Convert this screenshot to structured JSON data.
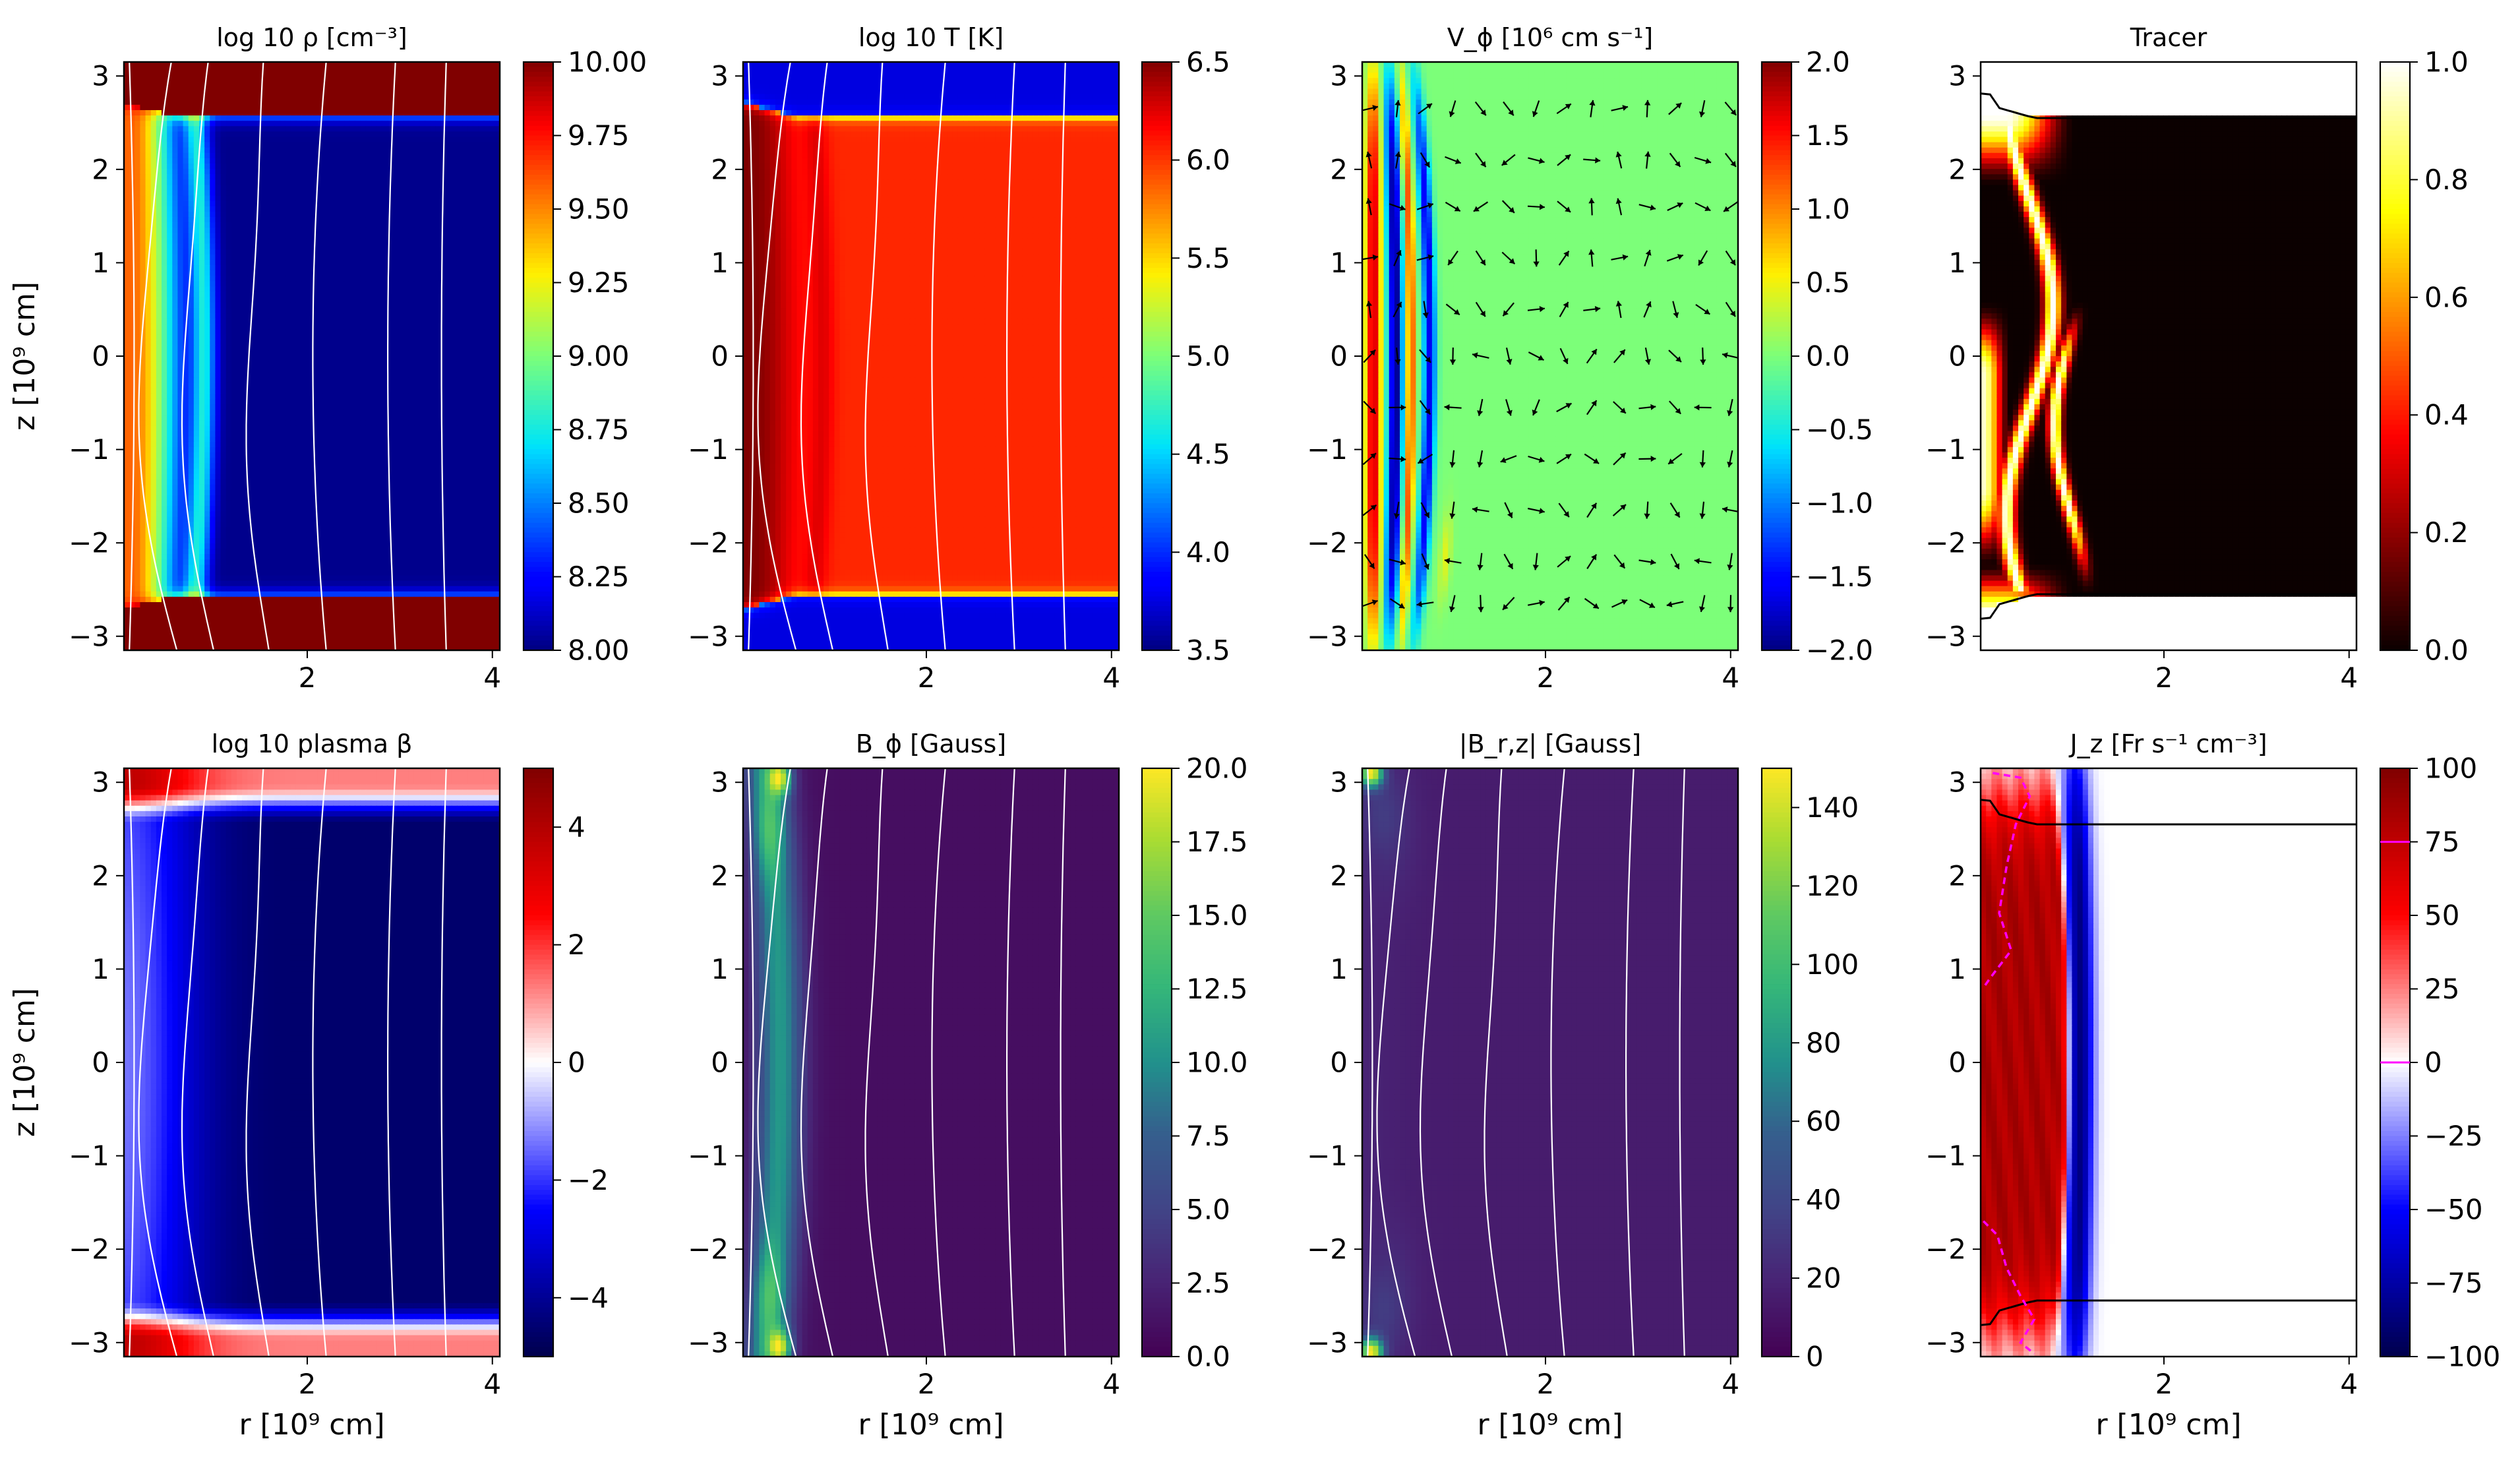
{
  "figure": {
    "x_axis_label": "r [10⁹ cm]",
    "y_axis_label": "z [10⁹ cm]",
    "r_ticks": [
      2,
      4
    ],
    "z_ticks": [
      -3,
      -2,
      -1,
      0,
      1,
      2,
      3
    ],
    "r_range": [
      0.02,
      4.08
    ],
    "z_range": [
      -3.15,
      3.15
    ]
  },
  "chart_data": [
    {
      "type": "heatmap",
      "id": "density",
      "title": "log 10 ρ [cm⁻³]",
      "colormap": "jet",
      "colorbar": {
        "range": [
          8.0,
          10.0
        ],
        "ticks": [
          "8.00",
          "8.25",
          "8.50",
          "8.75",
          "9.00",
          "9.25",
          "9.50",
          "9.75",
          "10.00"
        ]
      },
      "xlabel": "",
      "ylabel": "z [10⁹ cm]",
      "overlay": "white field lines",
      "description_values": {
        "background_top_bottom": 10.0,
        "core_left": 9.6,
        "ring_peak": 8.6,
        "outer_plasma": 8.0
      }
    },
    {
      "type": "heatmap",
      "id": "temperature",
      "title": "log 10  T [K]",
      "colormap": "jet",
      "colorbar": {
        "range": [
          3.5,
          6.5
        ],
        "ticks": [
          "3.5",
          "4.0",
          "4.5",
          "5.0",
          "5.5",
          "6.0",
          "6.5"
        ]
      },
      "xlabel": "",
      "ylabel": "",
      "overlay": "white field lines",
      "description_values": {
        "corona_top_bottom": 3.7,
        "core_left": 6.5,
        "ring": 6.25,
        "outer_plasma": 6.05
      }
    },
    {
      "type": "heatmap",
      "id": "vphi",
      "title": "V_ϕ [10⁶ cm s⁻¹]",
      "colormap": "jet",
      "colorbar": {
        "range": [
          -2.0,
          2.0
        ],
        "ticks": [
          "2.0",
          "1.5",
          "1.0",
          "0.5",
          "0.0",
          "−0.5",
          "−1.0",
          "−1.5",
          "−2.0"
        ]
      },
      "xlabel": "",
      "ylabel": "",
      "overlay": "black velocity arrows"
    },
    {
      "type": "heatmap",
      "id": "tracer",
      "title": "Tracer",
      "colormap": "hot",
      "colorbar": {
        "range": [
          0.0,
          1.0
        ],
        "ticks": [
          "1.0",
          "0.8",
          "0.6",
          "0.4",
          "0.2",
          "0.0"
        ]
      },
      "xlabel": "",
      "ylabel": "",
      "overlay": "black boundary contour"
    },
    {
      "type": "heatmap",
      "id": "beta",
      "title": "log 10 plasma β",
      "colormap": "seismic",
      "colorbar": {
        "range": [
          -5,
          5
        ],
        "ticks": [
          "4",
          "2",
          "0",
          "−2",
          "−4"
        ]
      },
      "xlabel": "r [10⁹ cm]",
      "ylabel": "z [10⁹ cm]",
      "overlay": "white field lines"
    },
    {
      "type": "heatmap",
      "id": "bphi",
      "title": "B_ϕ [Gauss]",
      "colormap": "viridis",
      "colorbar": {
        "range": [
          0.0,
          20.0
        ],
        "ticks": [
          "20.0",
          "17.5",
          "15.0",
          "12.5",
          "10.0",
          "7.5",
          "5.0",
          "2.5",
          "0.0"
        ]
      },
      "xlabel": "r [10⁹ cm]",
      "ylabel": "",
      "overlay": "white field lines"
    },
    {
      "type": "heatmap",
      "id": "brz",
      "title": "|B_r,z| [Gauss]",
      "colormap": "viridis",
      "colorbar": {
        "range": [
          0,
          150
        ],
        "ticks": [
          "140",
          "120",
          "100",
          "80",
          "60",
          "40",
          "20",
          "0"
        ]
      },
      "xlabel": "r [10⁹ cm]",
      "ylabel": "",
      "overlay": "white field lines"
    },
    {
      "type": "heatmap",
      "id": "jz",
      "title": "J_z [Fr s⁻¹ cm⁻³]",
      "colormap": "seismic",
      "colorbar": {
        "range": [
          -100,
          100
        ],
        "ticks": [
          "100",
          "75",
          "50",
          "25",
          "0",
          "−25",
          "−50",
          "−75",
          "−100"
        ],
        "markers": [
          75,
          0
        ]
      },
      "xlabel": "r [10⁹ cm]",
      "ylabel": "",
      "overlay": "black boundary contour, magenta dashed contour"
    }
  ],
  "colors": {
    "field_line": "#ffffff",
    "contour": "#000000",
    "magenta": "#ff00ff"
  }
}
